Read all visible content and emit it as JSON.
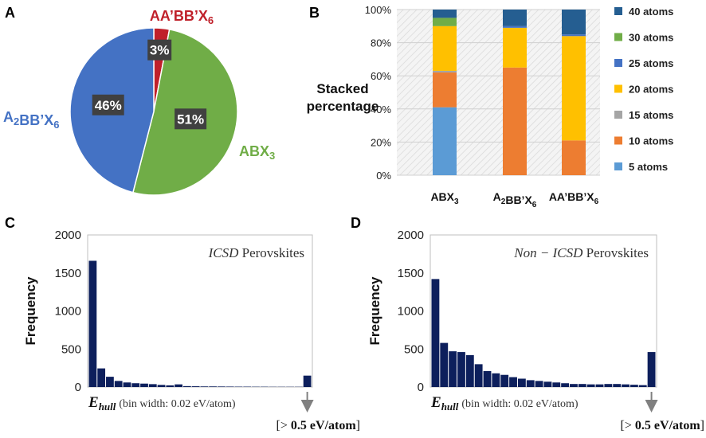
{
  "chart_data": [
    {
      "panel": "A",
      "type": "pie",
      "labels": [
        "AA’BB’X₆",
        "ABX₃",
        "A₂BB’X₆"
      ],
      "values": [
        3,
        51,
        46
      ],
      "value_labels": [
        "3%",
        "51%",
        "46%"
      ],
      "colors": [
        "#c0202a",
        "#70ad47",
        "#4472c4"
      ]
    },
    {
      "panel": "B",
      "type": "bar",
      "stacked": true,
      "ylabel": "Stacked percentage",
      "categories": [
        "ABX₃",
        "A₂BB’X₆",
        "AA’BB’X₆"
      ],
      "yticks": [
        "0%",
        "20%",
        "40%",
        "60%",
        "80%",
        "100%"
      ],
      "ylim": [
        0,
        100
      ],
      "series": [
        {
          "name": "5 atoms",
          "color": "#5b9bd5",
          "values": [
            41,
            0,
            0
          ]
        },
        {
          "name": "10 atoms",
          "color": "#ed7d31",
          "values": [
            21,
            65,
            21
          ]
        },
        {
          "name": "15 atoms",
          "color": "#a5a5a5",
          "values": [
            1,
            0,
            0
          ]
        },
        {
          "name": "20 atoms",
          "color": "#ffc000",
          "values": [
            27,
            24,
            63
          ]
        },
        {
          "name": "25 atoms",
          "color": "#4472c4",
          "values": [
            0,
            1,
            1
          ]
        },
        {
          "name": "30 atoms",
          "color": "#70ad47",
          "values": [
            5,
            0,
            0
          ]
        },
        {
          "name": "40 atoms",
          "color": "#255e91",
          "values": [
            5,
            10,
            15
          ]
        }
      ]
    },
    {
      "panel": "C",
      "type": "bar",
      "title": "ICSD Perovskites",
      "ylabel": "Frequency",
      "xlabel_var": "E",
      "xlabel_sub": "hull",
      "xlabel_note": "(bin width: 0.02 eV/atom)",
      "overflow_label": "[> 0.5 eV/atom]",
      "ylim": [
        0,
        2000
      ],
      "yticks": [
        "0",
        "500",
        "1000",
        "1500",
        "2000"
      ],
      "values": [
        1660,
        245,
        135,
        80,
        60,
        50,
        45,
        38,
        28,
        22,
        35,
        12,
        10,
        8,
        8,
        7,
        6,
        5,
        5,
        4,
        4,
        3,
        3,
        3,
        3,
        150
      ],
      "bar_color": "#0d1f5c"
    },
    {
      "panel": "D",
      "type": "bar",
      "title": "Non − ICSD Perovskites",
      "ylabel": "Frequency",
      "xlabel_var": "E",
      "xlabel_sub": "hull",
      "xlabel_note": "(bin width: 0.02 eV/atom)",
      "overflow_label": "[> 0.5 eV/atom]",
      "ylim": [
        0,
        2000
      ],
      "yticks": [
        "0",
        "500",
        "1000",
        "1500",
        "2000"
      ],
      "values": [
        1420,
        580,
        470,
        460,
        420,
        300,
        210,
        180,
        160,
        130,
        110,
        90,
        80,
        70,
        60,
        50,
        40,
        40,
        35,
        35,
        40,
        40,
        35,
        30,
        25,
        460
      ],
      "bar_color": "#0d1f5c"
    }
  ],
  "panels": {
    "a": "A",
    "b": "B",
    "c": "C",
    "d": "D"
  }
}
